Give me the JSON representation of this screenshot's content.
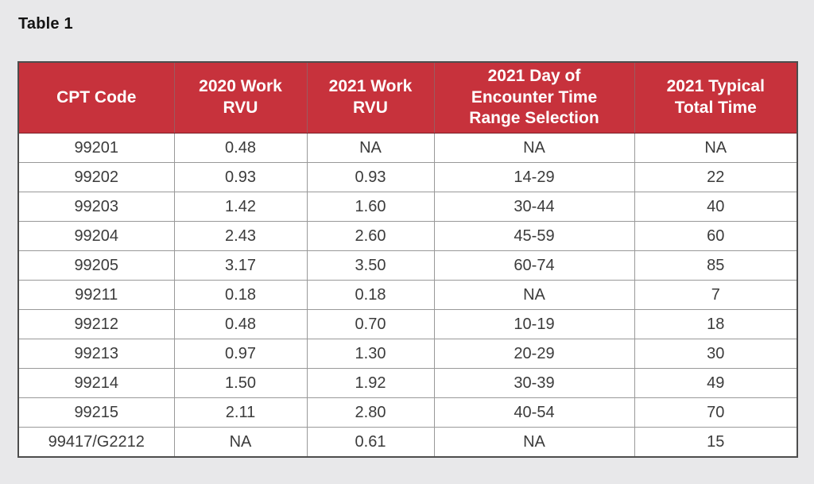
{
  "page": {
    "title": "Table 1",
    "background_color": "#E8E8EA"
  },
  "table": {
    "header_bg_color": "#C7323C",
    "header_text_color": "#FFFFFF",
    "grid_line_color": "#999999",
    "columns": [
      "CPT Code",
      "2020 Work RVU",
      "2021 Work RVU",
      "2021 Day of Encounter Time Range Selection",
      "2021 Typical Total Time"
    ],
    "rows": [
      [
        "99201",
        "0.48",
        "NA",
        "NA",
        "NA"
      ],
      [
        "99202",
        "0.93",
        "0.93",
        "14-29",
        "22"
      ],
      [
        "99203",
        "1.42",
        "1.60",
        "30-44",
        "40"
      ],
      [
        "99204",
        "2.43",
        "2.60",
        "45-59",
        "60"
      ],
      [
        "99205",
        "3.17",
        "3.50",
        "60-74",
        "85"
      ],
      [
        "99211",
        "0.18",
        "0.18",
        "NA",
        "7"
      ],
      [
        "99212",
        "0.48",
        "0.70",
        "10-19",
        "18"
      ],
      [
        "99213",
        "0.97",
        "1.30",
        "20-29",
        "30"
      ],
      [
        "99214",
        "1.50",
        "1.92",
        "30-39",
        "49"
      ],
      [
        "99215",
        "2.11",
        "2.80",
        "40-54",
        "70"
      ],
      [
        "99417/G2212",
        "NA",
        "0.61",
        "NA",
        "15"
      ]
    ]
  }
}
